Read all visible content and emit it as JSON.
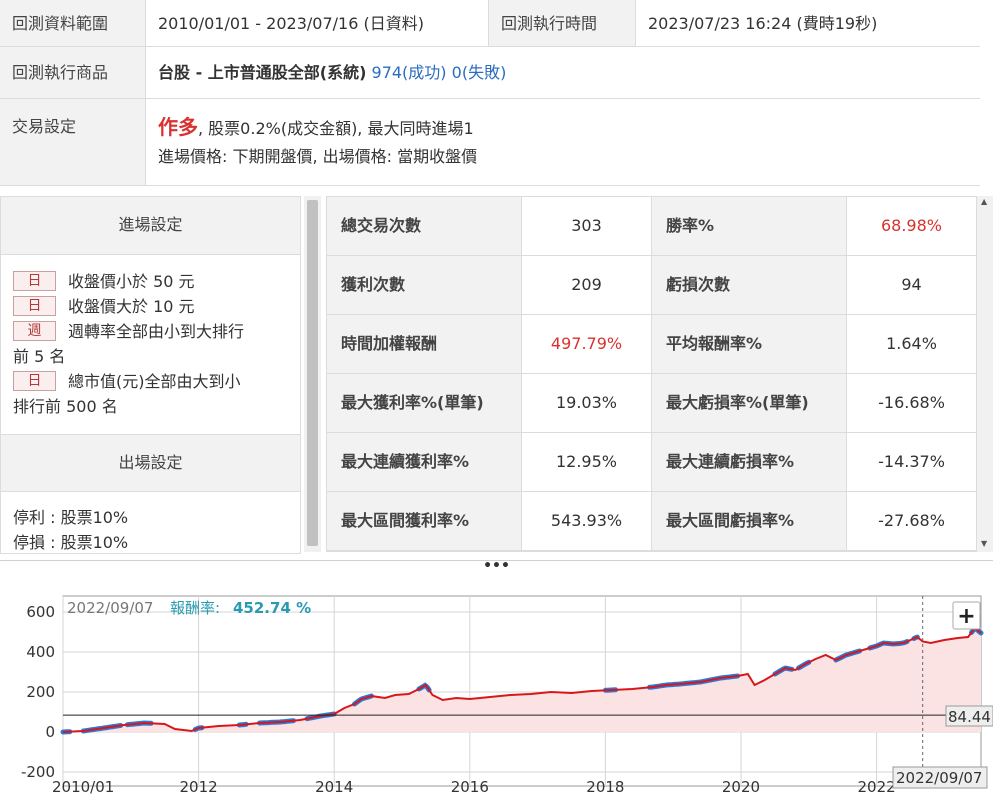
{
  "info": {
    "range_label": "回測資料範圍",
    "range_value": "2010/01/01 - 2023/07/16 (日資料)",
    "exec_time_label": "回測執行時間",
    "exec_time_value": "2023/07/23 16:24 (費時19秒)",
    "product_label": "回測執行商品",
    "product_name": "台股 - 上市普通股全部(系統)",
    "product_success": "974(成功)",
    "product_fail": "0(失敗)",
    "trade_label": "交易設定",
    "trade_direction": "作多",
    "trade_line1": ", 股票0.2%(成交金額), 最大同時進場1",
    "trade_line2": "進場價格: 下期開盤價, 出場價格: 當期收盤價"
  },
  "entry": {
    "title": "進場設定",
    "conditions": [
      {
        "badge": "日",
        "text": "收盤價小於 50 元"
      },
      {
        "badge": "日",
        "text": "收盤價大於 10 元"
      },
      {
        "badge": "週",
        "text": "週轉率全部由小到大排行"
      },
      {
        "badge": "",
        "text": "前 5 名"
      },
      {
        "badge": "日",
        "text": "總市值(元)全部由大到小"
      },
      {
        "badge": "",
        "text": "排行前 500 名"
      }
    ]
  },
  "exit": {
    "title": "出場設定",
    "take_profit": "停利 : 股票10%",
    "stop_loss": "停損 : 股票10%"
  },
  "stats": {
    "rows": [
      {
        "l1": "總交易次數",
        "v1": "303",
        "l2": "勝率%",
        "v2": "68.98%"
      },
      {
        "l1": "獲利次數",
        "v1": "209",
        "l2": "虧損次數",
        "v2": "94"
      },
      {
        "l1": "時間加權報酬",
        "v1": "497.79%",
        "l2": "平均報酬率%",
        "v2": "1.64%"
      },
      {
        "l1": "最大獲利率%(單筆)",
        "v1": "19.03%",
        "l2": "最大虧損率%(單筆)",
        "v2": "-16.68%"
      },
      {
        "l1": "最大連續獲利率%",
        "v1": "12.95%",
        "l2": "最大連續虧損率%",
        "v2": "-14.37%"
      },
      {
        "l1": "最大區間獲利率%",
        "v1": "543.93%",
        "l2": "最大區間虧損率%",
        "v2": "-27.68%"
      }
    ],
    "red_color": "#d9322e"
  },
  "splitter_glyph": "•••",
  "chart_data": {
    "type": "line",
    "header_date": "2022/09/07",
    "header_label": "報酬率:",
    "header_value": "452.74 %",
    "y_ticks": [
      "600",
      "400",
      "200",
      "0",
      "-200"
    ],
    "x_ticks": [
      "2010/01",
      "2012",
      "2014",
      "2016",
      "2018",
      "2020",
      "2022"
    ],
    "crosshair_x_label": "2022/09/07",
    "last_value_label": "84.44",
    "zoom_button": "+",
    "ylim": [
      -270,
      680
    ],
    "xlim": [
      2010.0,
      2023.54
    ],
    "crosshair_x": 2022.68,
    "baseline_y": 84.44,
    "line_color": "#d8171b",
    "highlight_color": "#2a7bd8",
    "fill_color": "#fbe3e3",
    "series": [
      {
        "values": [
          [
            2010.0,
            0
          ],
          [
            2010.3,
            5
          ],
          [
            2010.6,
            20
          ],
          [
            2010.9,
            35
          ],
          [
            2011.2,
            45
          ],
          [
            2011.5,
            40
          ],
          [
            2011.65,
            15
          ],
          [
            2011.9,
            5
          ],
          [
            2012.0,
            20
          ],
          [
            2012.3,
            30
          ],
          [
            2012.6,
            35
          ],
          [
            2012.9,
            45
          ],
          [
            2013.2,
            50
          ],
          [
            2013.5,
            60
          ],
          [
            2013.8,
            80
          ],
          [
            2014.0,
            90
          ],
          [
            2014.15,
            120
          ],
          [
            2014.3,
            140
          ],
          [
            2014.4,
            165
          ],
          [
            2014.55,
            180
          ],
          [
            2014.75,
            170
          ],
          [
            2014.9,
            185
          ],
          [
            2015.1,
            190
          ],
          [
            2015.25,
            215
          ],
          [
            2015.35,
            235
          ],
          [
            2015.45,
            185
          ],
          [
            2015.6,
            160
          ],
          [
            2015.8,
            170
          ],
          [
            2016.0,
            165
          ],
          [
            2016.3,
            175
          ],
          [
            2016.6,
            185
          ],
          [
            2016.9,
            190
          ],
          [
            2017.2,
            200
          ],
          [
            2017.5,
            195
          ],
          [
            2017.8,
            205
          ],
          [
            2018.1,
            210
          ],
          [
            2018.4,
            215
          ],
          [
            2018.7,
            225
          ],
          [
            2018.9,
            235
          ],
          [
            2019.1,
            240
          ],
          [
            2019.4,
            250
          ],
          [
            2019.7,
            270
          ],
          [
            2019.95,
            280
          ],
          [
            2020.1,
            290
          ],
          [
            2020.2,
            235
          ],
          [
            2020.35,
            260
          ],
          [
            2020.5,
            290
          ],
          [
            2020.65,
            320
          ],
          [
            2020.8,
            310
          ],
          [
            2020.95,
            340
          ],
          [
            2021.1,
            365
          ],
          [
            2021.25,
            385
          ],
          [
            2021.4,
            360
          ],
          [
            2021.55,
            385
          ],
          [
            2021.7,
            400
          ],
          [
            2021.85,
            415
          ],
          [
            2022.0,
            430
          ],
          [
            2022.1,
            445
          ],
          [
            2022.25,
            440
          ],
          [
            2022.4,
            445
          ],
          [
            2022.5,
            460
          ],
          [
            2022.6,
            475
          ],
          [
            2022.68,
            452.74
          ],
          [
            2022.8,
            445
          ],
          [
            2023.0,
            460
          ],
          [
            2023.2,
            470
          ],
          [
            2023.35,
            475
          ],
          [
            2023.45,
            520
          ],
          [
            2023.54,
            495
          ]
        ]
      }
    ],
    "highlight_ranges": [
      [
        2010.0,
        2010.1
      ],
      [
        2010.3,
        2010.85
      ],
      [
        2010.95,
        2011.3
      ],
      [
        2011.95,
        2012.05
      ],
      [
        2012.6,
        2012.7
      ],
      [
        2012.9,
        2013.4
      ],
      [
        2013.6,
        2014.0
      ],
      [
        2014.3,
        2014.55
      ],
      [
        2015.25,
        2015.4
      ],
      [
        2018.0,
        2018.15
      ],
      [
        2018.65,
        2019.95
      ],
      [
        2020.5,
        2020.75
      ],
      [
        2020.85,
        2021.0
      ],
      [
        2021.4,
        2021.75
      ],
      [
        2021.9,
        2022.45
      ],
      [
        2022.55,
        2022.6
      ],
      [
        2023.4,
        2023.54
      ]
    ]
  }
}
